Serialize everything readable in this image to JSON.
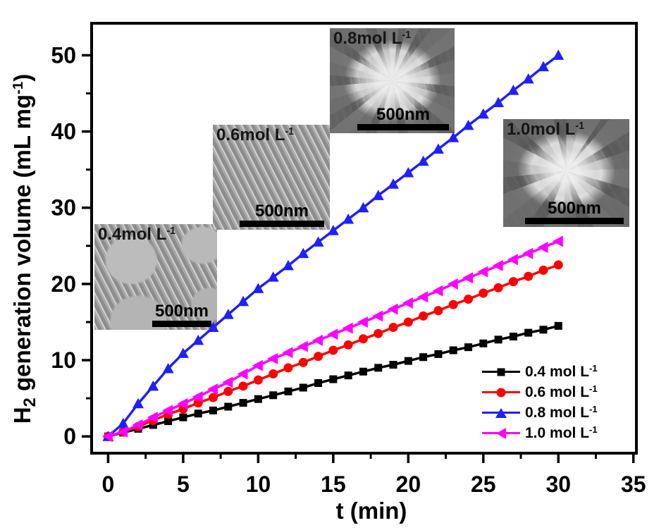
{
  "figure": {
    "xlabel_text": "t (min)",
    "ylabel_h": "H",
    "ylabel_sub": "2",
    "ylabel_mid": " generation volume (mL mg",
    "ylabel_sup": "-1",
    "ylabel_end": ")"
  },
  "legend": {
    "items": [
      {
        "text": "0.4 mol L",
        "sup": "-1",
        "color": "#000000",
        "marker": "square"
      },
      {
        "text": "0.6 mol L",
        "sup": "-1",
        "color": "#ff0000",
        "marker": "circle"
      },
      {
        "text": "0.8 mol L",
        "sup": "-1",
        "color": "#1f1fff",
        "marker": "triangle-up"
      },
      {
        "text": "1.0 mol L",
        "sup": "-1",
        "color": "#ff00ff",
        "marker": "triangle-left"
      }
    ]
  },
  "insets": [
    {
      "label": "0.4mol L",
      "label_sup": "-1",
      "scale_text": "500nm"
    },
    {
      "label": "0.6mol L",
      "label_sup": "-1",
      "scale_text": "500nm"
    },
    {
      "label": "0.8mol L",
      "label_sup": "-1",
      "scale_text": "500nm"
    },
    {
      "label": "1.0mol L",
      "label_sup": "-1",
      "scale_text": "500nm"
    }
  ],
  "chart_data": {
    "type": "line",
    "title": "",
    "xlabel": "t (min)",
    "ylabel": "H2 generation volume (mL mg-1)",
    "xlim": [
      -1.1,
      35.2
    ],
    "ylim": [
      -2.2,
      54.2
    ],
    "x_ticks": [
      0,
      5,
      10,
      15,
      20,
      25,
      30,
      35
    ],
    "x_minor_ticks": [
      2.5,
      7.5,
      12.5,
      17.5,
      22.5,
      27.5,
      32.5
    ],
    "y_ticks": [
      0,
      10,
      20,
      30,
      40,
      50
    ],
    "y_minor_ticks": [
      5,
      15,
      25,
      35,
      45
    ],
    "grid": false,
    "legend_position": "lower right",
    "x": [
      0,
      1,
      2,
      3,
      4,
      5,
      6,
      7,
      8,
      9,
      10,
      11,
      12,
      13,
      14,
      15,
      16,
      17,
      18,
      19,
      20,
      21,
      22,
      23,
      24,
      25,
      26,
      27,
      28,
      29,
      30
    ],
    "series": [
      {
        "name": "0.4 mol L-1",
        "concentration": "0.4",
        "color": "#000000",
        "marker": "square",
        "values": [
          0,
          0.5,
          1.0,
          1.5,
          2.0,
          2.5,
          3.0,
          3.4,
          3.9,
          4.4,
          4.9,
          5.4,
          5.9,
          6.4,
          7.0,
          7.5,
          8.0,
          8.5,
          9.0,
          9.4,
          9.9,
          10.4,
          10.8,
          11.3,
          11.7,
          12.2,
          12.7,
          13.1,
          13.6,
          14.0,
          14.5
        ]
      },
      {
        "name": "0.6 mol L-1",
        "concentration": "0.6",
        "color": "#ff0000",
        "marker": "circle",
        "values": [
          0,
          0.6,
          1.3,
          2.1,
          2.9,
          3.6,
          4.4,
          5.1,
          5.9,
          6.6,
          7.4,
          8.2,
          9.0,
          9.7,
          10.5,
          11.3,
          12.0,
          12.8,
          13.5,
          14.3,
          15.0,
          15.8,
          16.5,
          17.3,
          18.0,
          18.8,
          19.5,
          20.3,
          21.0,
          21.8,
          22.5
        ]
      },
      {
        "name": "0.8 mol L-1",
        "concentration": "0.8",
        "color": "#1f1fff",
        "marker": "triangle-up",
        "values": [
          0,
          1.7,
          4.3,
          6.6,
          8.9,
          10.9,
          12.6,
          14.3,
          16.0,
          17.7,
          19.4,
          20.9,
          22.4,
          24.0,
          25.5,
          27.0,
          28.5,
          30.0,
          31.6,
          33.1,
          34.6,
          36.1,
          37.7,
          39.2,
          40.8,
          42.3,
          43.8,
          45.4,
          46.9,
          48.5,
          50.0
        ]
      },
      {
        "name": "1.0 mol L-1",
        "concentration": "1.0",
        "color": "#ff00ff",
        "marker": "triangle-left",
        "values": [
          0,
          0.6,
          1.5,
          2.5,
          3.4,
          4.3,
          5.2,
          6.2,
          7.1,
          8.2,
          9.3,
          10.2,
          11.0,
          11.8,
          12.6,
          13.4,
          14.2,
          15.0,
          15.8,
          16.7,
          17.5,
          18.3,
          19.1,
          20.0,
          20.8,
          21.6,
          22.4,
          23.2,
          24.0,
          24.8,
          25.6
        ]
      }
    ]
  }
}
